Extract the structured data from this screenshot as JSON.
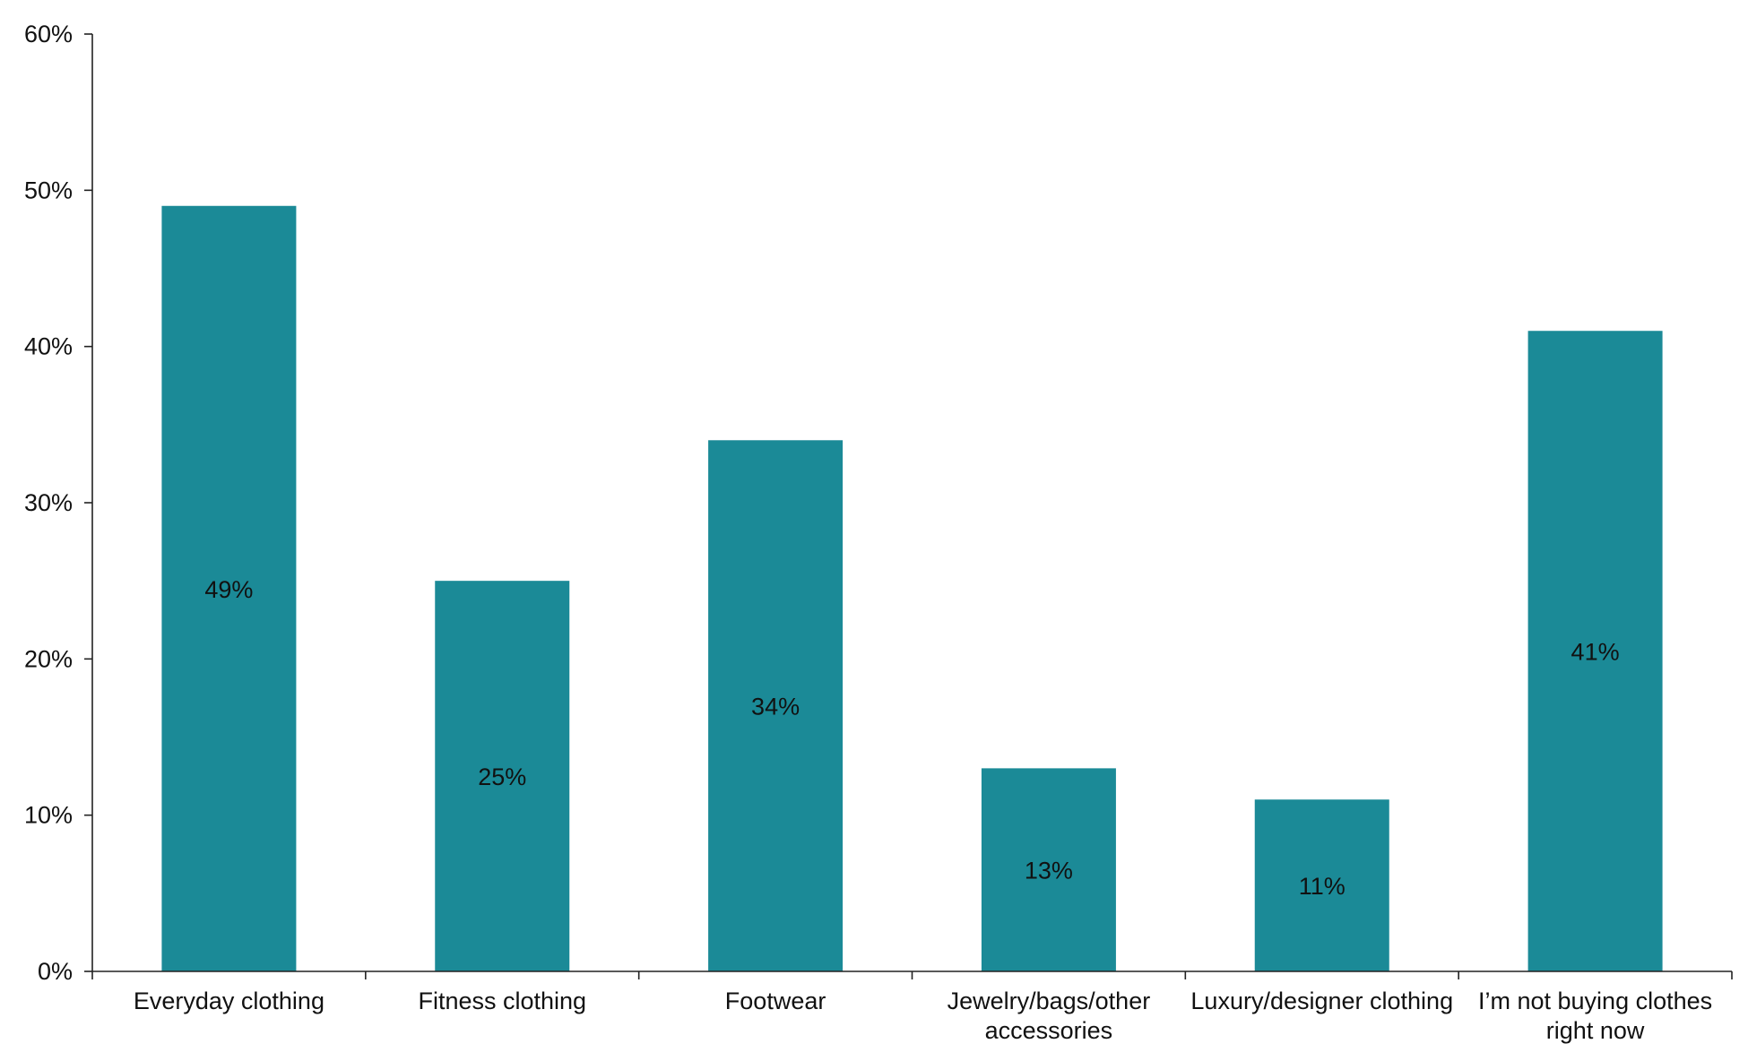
{
  "chart_data": {
    "type": "bar",
    "categories": [
      "Everyday clothing",
      "Fitness clothing",
      "Footwear",
      "Jewelry/bags/other accessories",
      "Luxury/designer clothing",
      "I'm not buying clothes right now"
    ],
    "category_lines": [
      [
        "Everyday clothing"
      ],
      [
        "Fitness clothing"
      ],
      [
        "Footwear"
      ],
      [
        "Jewelry/bags/other",
        "accessories"
      ],
      [
        "Luxury/designer clothing"
      ],
      [
        "I’m not buying clothes",
        "right now"
      ]
    ],
    "values": [
      49,
      25,
      34,
      13,
      11,
      41
    ],
    "data_labels": [
      "49%",
      "25%",
      "34%",
      "13%",
      "11%",
      "41%"
    ],
    "ylim": [
      0,
      60
    ],
    "yticks": [
      0,
      10,
      20,
      30,
      40,
      50,
      60
    ],
    "ytick_labels": [
      "0%",
      "10%",
      "20%",
      "30%",
      "40%",
      "50%",
      "60%"
    ],
    "title": "",
    "xlabel": "",
    "ylabel": "",
    "grid": false,
    "legend": "none",
    "bar_color": "#1b8a97",
    "axis_color": "#222222"
  }
}
